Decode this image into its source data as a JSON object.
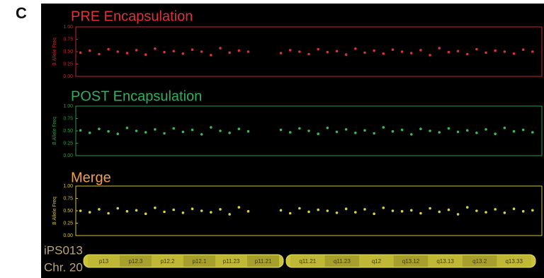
{
  "panel_label": "C",
  "chart_data": [
    {
      "type": "scatter",
      "title": "PRE Encapsulation",
      "y_label": "B Allele Freq",
      "color": "#d8323c",
      "frame_color": "#c0282f",
      "title_color": "#e0303a",
      "xlim": [
        0,
        100
      ],
      "ylim": [
        0,
        1
      ],
      "yticks": [
        {
          "value": 0,
          "label": "0.00"
        },
        {
          "value": 0.25,
          "label": "0.25"
        },
        {
          "value": 0.5,
          "label": "0.50"
        },
        {
          "value": 0.75,
          "label": "0.75"
        },
        {
          "value": 1,
          "label": "1.00"
        }
      ],
      "x": [
        1,
        3,
        5,
        7,
        9,
        11,
        13,
        15,
        17,
        19,
        21,
        23,
        25,
        27,
        29,
        31,
        33,
        35,
        37,
        44,
        46,
        48,
        50,
        52,
        54,
        56,
        58,
        60,
        62,
        64,
        66,
        68,
        70,
        72,
        74,
        76,
        78,
        80,
        82,
        84,
        86,
        88,
        90,
        92,
        94,
        96,
        98
      ],
      "values": [
        0.48,
        0.52,
        0.45,
        0.55,
        0.5,
        0.47,
        0.53,
        0.44,
        0.56,
        0.49,
        0.51,
        0.46,
        0.54,
        0.5,
        0.43,
        0.57,
        0.48,
        0.52,
        0.5,
        0.47,
        0.53,
        0.5,
        0.45,
        0.55,
        0.49,
        0.51,
        0.44,
        0.56,
        0.48,
        0.52,
        0.46,
        0.54,
        0.5,
        0.47,
        0.53,
        0.43,
        0.57,
        0.49,
        0.51,
        0.45,
        0.55,
        0.48,
        0.52,
        0.5,
        0.46,
        0.54,
        0.5
      ]
    },
    {
      "type": "scatter",
      "title": "POST Encapsulation",
      "y_label": "B Allele Freq",
      "color": "#3bb85a",
      "frame_color": "#2e9a4a",
      "title_color": "#2fb060",
      "xlim": [
        0,
        100
      ],
      "ylim": [
        0,
        1
      ],
      "yticks": [
        {
          "value": 0,
          "label": "0.00"
        },
        {
          "value": 0.25,
          "label": "0.25"
        },
        {
          "value": 0.5,
          "label": "0.50"
        },
        {
          "value": 0.75,
          "label": "0.75"
        },
        {
          "value": 1,
          "label": "1.00"
        }
      ],
      "x": [
        1,
        3,
        5,
        7,
        9,
        11,
        13,
        15,
        17,
        19,
        21,
        23,
        25,
        27,
        29,
        31,
        33,
        35,
        37,
        44,
        46,
        48,
        50,
        52,
        54,
        56,
        58,
        60,
        62,
        64,
        66,
        68,
        70,
        72,
        74,
        76,
        78,
        80,
        82,
        84,
        86,
        88,
        90,
        92,
        94,
        96,
        98
      ],
      "values": [
        0.51,
        0.46,
        0.54,
        0.49,
        0.44,
        0.56,
        0.5,
        0.47,
        0.53,
        0.45,
        0.55,
        0.48,
        0.52,
        0.43,
        0.57,
        0.5,
        0.46,
        0.54,
        0.49,
        0.52,
        0.47,
        0.55,
        0.5,
        0.44,
        0.56,
        0.48,
        0.53,
        0.46,
        0.51,
        0.45,
        0.57,
        0.49,
        0.52,
        0.43,
        0.54,
        0.5,
        0.47,
        0.55,
        0.48,
        0.51,
        0.46,
        0.53,
        0.44,
        0.56,
        0.49,
        0.52,
        0.47
      ]
    },
    {
      "type": "scatter",
      "title": "Merge",
      "y_label": "B Allele Freq",
      "color": "#d9d341",
      "frame_color": "#d4c23a",
      "title_color": "#f0a050",
      "xlim": [
        0,
        100
      ],
      "ylim": [
        0,
        1
      ],
      "yticks": [
        {
          "value": 0,
          "label": "0.00"
        },
        {
          "value": 0.25,
          "label": "0.25"
        },
        {
          "value": 0.5,
          "label": "0.50"
        },
        {
          "value": 0.75,
          "label": "0.75"
        },
        {
          "value": 1,
          "label": "1.00"
        }
      ],
      "x": [
        1,
        3,
        5,
        7,
        9,
        11,
        13,
        15,
        17,
        19,
        21,
        23,
        25,
        27,
        29,
        31,
        33,
        35,
        37,
        44,
        46,
        48,
        50,
        52,
        54,
        56,
        58,
        60,
        62,
        64,
        66,
        68,
        70,
        72,
        74,
        76,
        78,
        80,
        82,
        84,
        86,
        88,
        90,
        92,
        94,
        96,
        98
      ],
      "values": [
        0.5,
        0.47,
        0.53,
        0.45,
        0.55,
        0.49,
        0.51,
        0.44,
        0.56,
        0.48,
        0.52,
        0.46,
        0.54,
        0.5,
        0.47,
        0.53,
        0.43,
        0.57,
        0.49,
        0.51,
        0.45,
        0.55,
        0.48,
        0.52,
        0.5,
        0.46,
        0.54,
        0.47,
        0.53,
        0.44,
        0.56,
        0.5,
        0.49,
        0.51,
        0.45,
        0.55,
        0.48,
        0.52,
        0.43,
        0.57,
        0.5,
        0.47,
        0.53,
        0.46,
        0.54,
        0.49,
        0.51
      ]
    }
  ],
  "ideogram": {
    "sample": "iPS013",
    "chromosome": "Chr. 20",
    "p_bands": [
      "p13",
      "p12.3",
      "p12.2",
      "p12.1",
      "p11.23",
      "p11.21"
    ],
    "q_bands": [
      "q11.21",
      "q11.23",
      "q12",
      "q13.12",
      "q13.13",
      "q13.2",
      "q13.33"
    ]
  }
}
